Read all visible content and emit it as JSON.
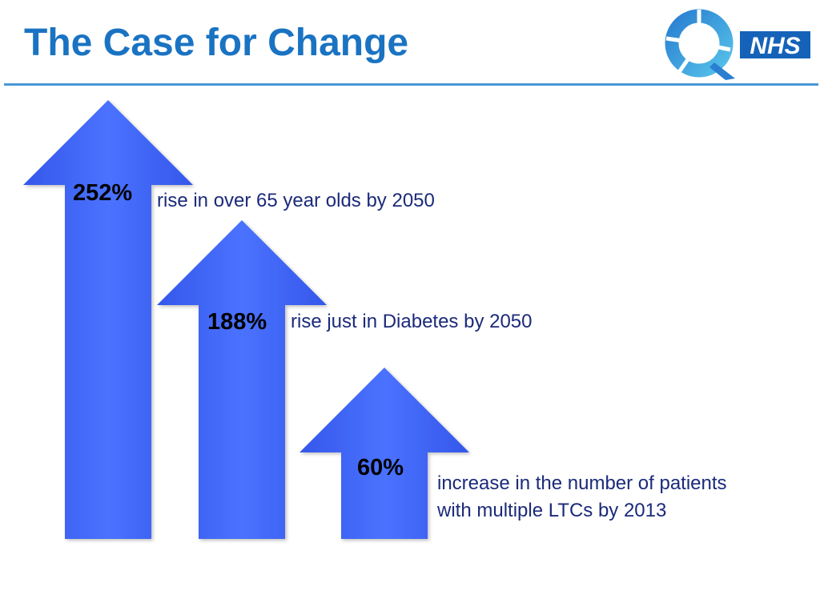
{
  "slide": {
    "title": "The Case for Change"
  },
  "logo": {
    "q_icon": "q-ring-icon",
    "nhs_text": "NHS"
  },
  "stats": [
    {
      "value": "252%",
      "description": "rise in over 65 year olds by 2050"
    },
    {
      "value": "188%",
      "description": "rise just in Diabetes by 2050"
    },
    {
      "value": "60%",
      "description_line1": "increase in the number of patients",
      "description_line2": "with multiple LTCs by 2013"
    }
  ],
  "colors": {
    "title": "#1a73c2",
    "rule": "#4a98d6",
    "arrow": "#3f63f2",
    "description": "#1b2a7a",
    "nhs_blue": "#1562b8"
  }
}
